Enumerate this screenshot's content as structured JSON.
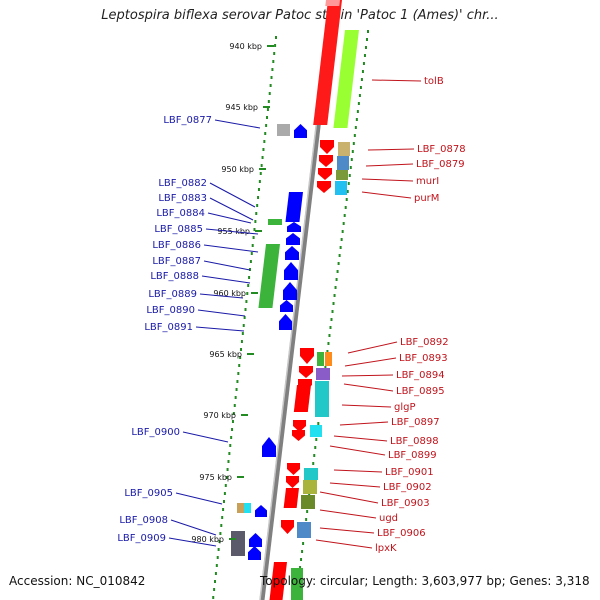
{
  "title": "Leptospira biflexa serovar Patoc strain 'Patoc 1 (Ames)' chr...",
  "footer": {
    "accession": "Accession: NC_010842",
    "summary": "Topology: circular; Length: 3,603,977 bp; Genes: 3,318"
  },
  "colors": {
    "forward": "#ff0000",
    "reverse": "#0000ff",
    "backbone": "#808080",
    "label_forward": "#c0141c",
    "label_reverse": "#1a1aa8"
  },
  "ticks": [
    "940 kbp",
    "945 kbp",
    "950 kbp",
    "955 kbp",
    "960 kbp",
    "965 kbp",
    "970 kbp",
    "975 kbp",
    "980 kbp"
  ],
  "reverse_genes": [
    "LBF_0877",
    "LBF_0882",
    "LBF_0883",
    "LBF_0884",
    "LBF_0885",
    "LBF_0886",
    "LBF_0887",
    "LBF_0888",
    "LBF_0889",
    "LBF_0890",
    "LBF_0891",
    "LBF_0900",
    "LBF_0905",
    "LBF_0908",
    "LBF_0909"
  ],
  "forward_genes": [
    "tolB",
    "LBF_0878",
    "LBF_0879",
    "murI",
    "purM",
    "LBF_0892",
    "LBF_0893",
    "LBF_0894",
    "LBF_0895",
    "glgP",
    "LBF_0897",
    "LBF_0898",
    "LBF_0899",
    "LBF_0901",
    "LBF_0902",
    "LBF_0903",
    "ugd",
    "LBF_0906",
    "lpxK"
  ]
}
